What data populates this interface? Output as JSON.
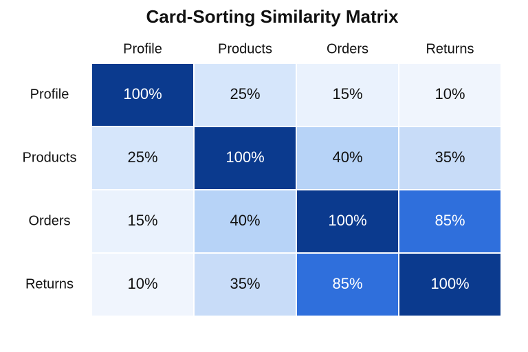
{
  "chart_data": {
    "type": "heatmap",
    "title": "Card-Sorting Similarity Matrix",
    "x_categories": [
      "Profile",
      "Products",
      "Orders",
      "Returns"
    ],
    "y_categories": [
      "Profile",
      "Products",
      "Orders",
      "Returns"
    ],
    "values": [
      [
        100,
        25,
        15,
        10
      ],
      [
        25,
        100,
        40,
        35
      ],
      [
        15,
        40,
        100,
        85
      ],
      [
        10,
        35,
        85,
        100
      ]
    ],
    "value_labels": [
      [
        "100%",
        "25%",
        "15%",
        "10%"
      ],
      [
        "25%",
        "100%",
        "40%",
        "35%"
      ],
      [
        "15%",
        "40%",
        "100%",
        "85%"
      ],
      [
        "10%",
        "35%",
        "85%",
        "100%"
      ]
    ],
    "colors": [
      [
        "#0b3a8e",
        "#d6e6fb",
        "#eaf2fd",
        "#f0f5fd"
      ],
      [
        "#d6e6fb",
        "#0b3a8e",
        "#b7d3f7",
        "#c8dcf8"
      ],
      [
        "#eaf2fd",
        "#b7d3f7",
        "#0b3a8e",
        "#2f6fdc"
      ],
      [
        "#f0f5fd",
        "#c8dcf8",
        "#2f6fdc",
        "#0b3a8e"
      ]
    ]
  }
}
